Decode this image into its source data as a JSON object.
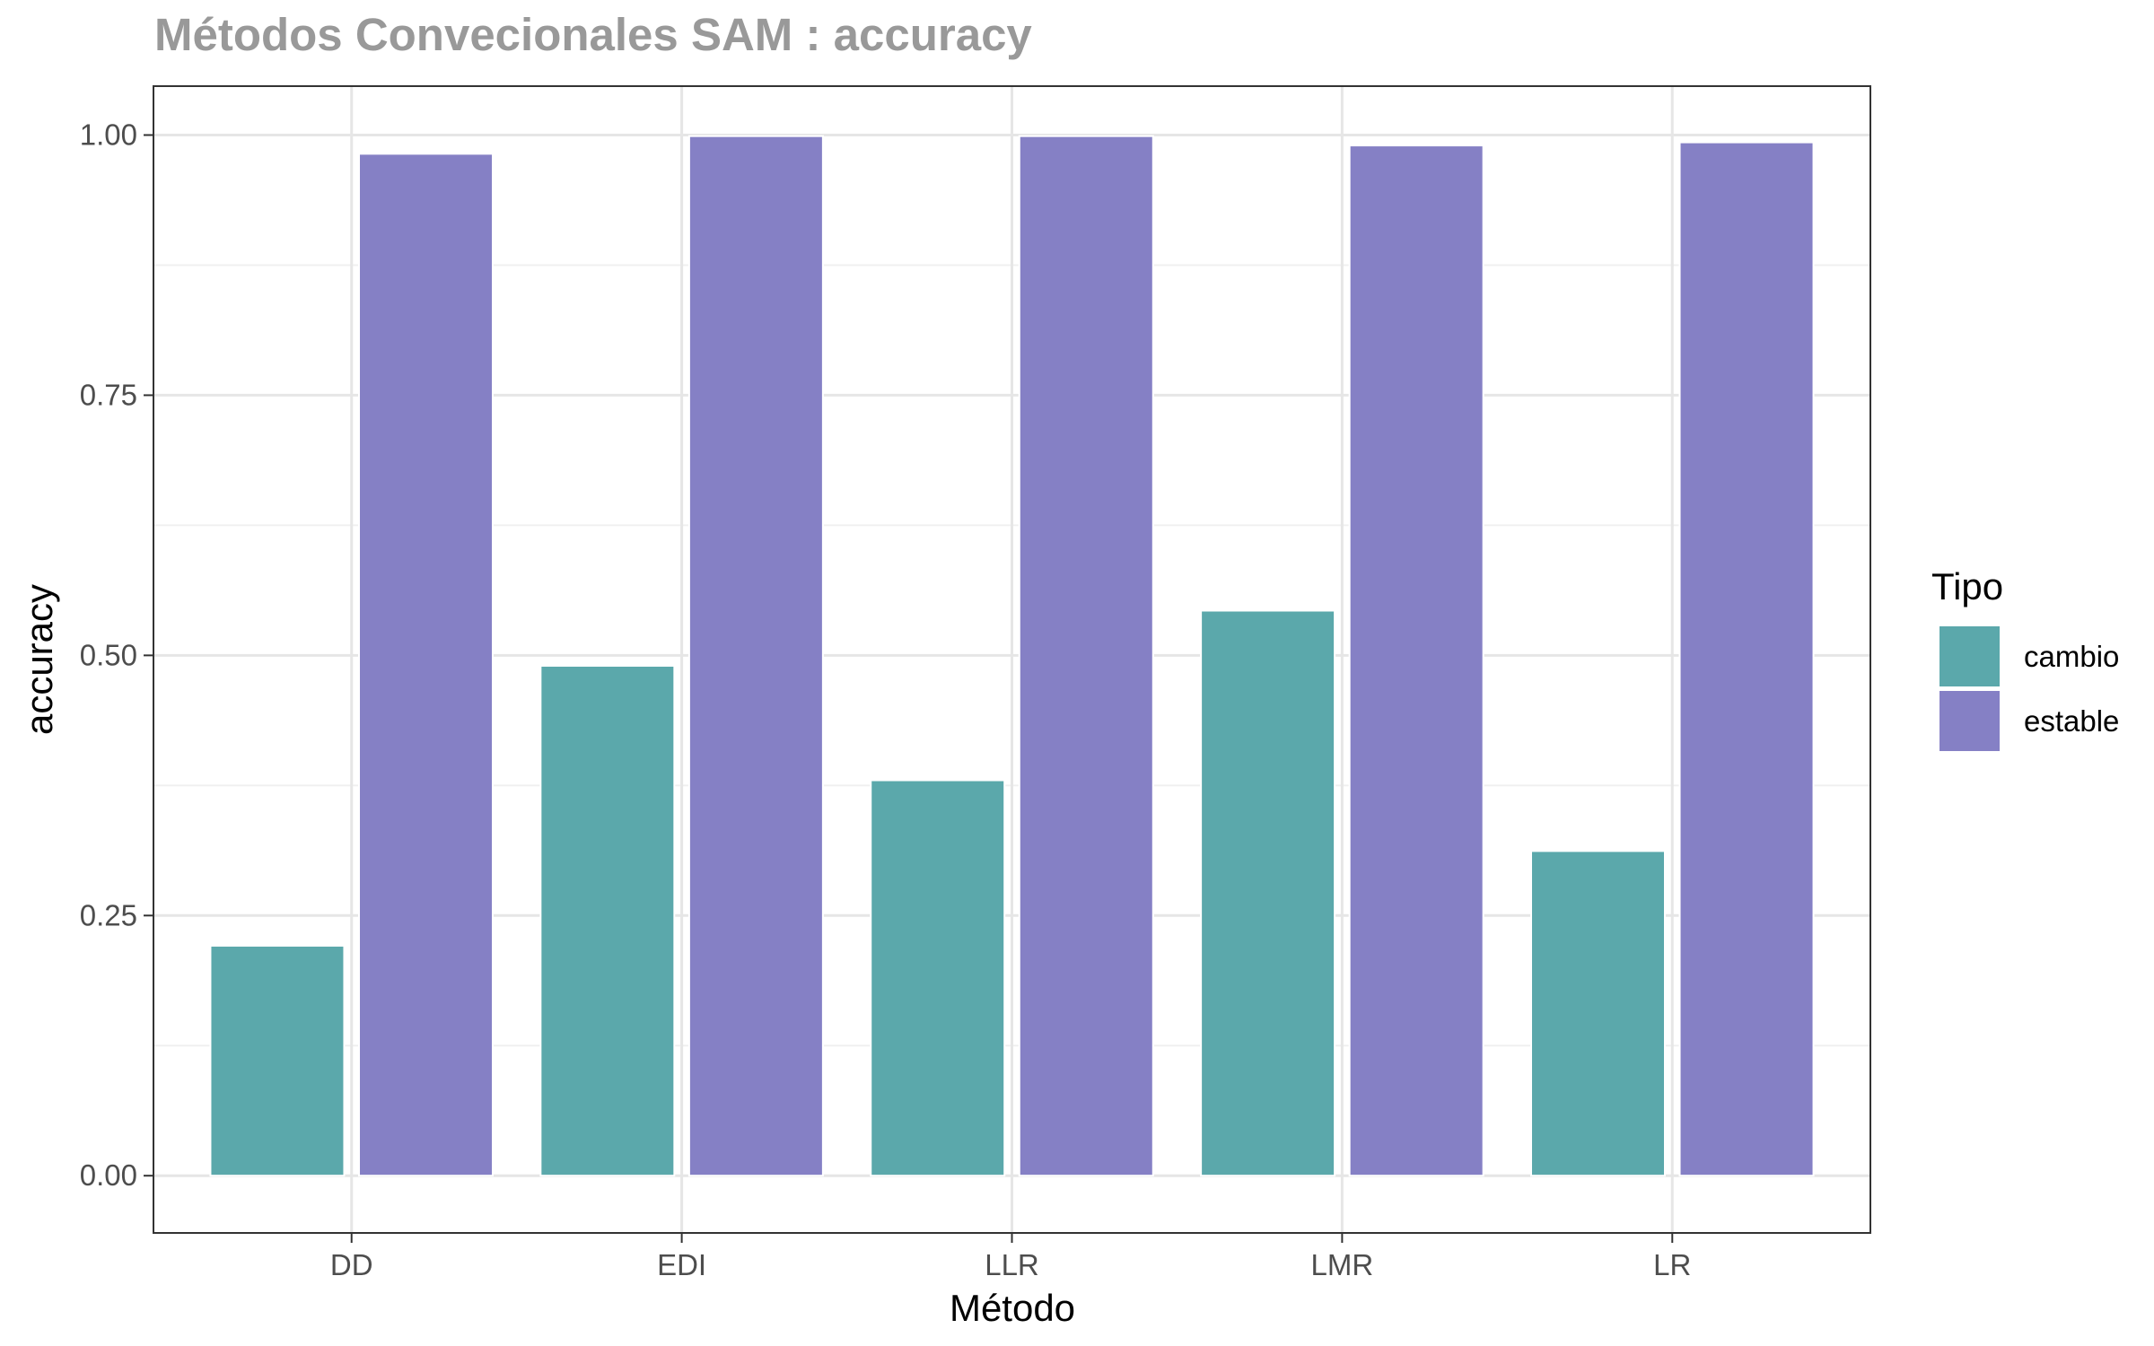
{
  "chart_data": {
    "type": "bar",
    "title": "Métodos Convecionales SAM : accuracy",
    "xlabel": "Método",
    "ylabel": "accuracy",
    "categories": [
      "DD",
      "EDI",
      "LLR",
      "LMR",
      "LR"
    ],
    "series": [
      {
        "name": "cambio",
        "color": "#5ba8ab",
        "values": [
          0.221,
          0.49,
          0.38,
          0.543,
          0.312
        ]
      },
      {
        "name": "estable",
        "color": "#8580c5",
        "values": [
          0.982,
          0.999,
          0.999,
          0.99,
          0.993
        ]
      }
    ],
    "ylim": [
      -0.055,
      1.047
    ],
    "yticks": [
      0.0,
      0.25,
      0.5,
      0.75,
      1.0
    ],
    "ytick_labels": [
      "0.00",
      "0.25",
      "0.50",
      "0.75",
      "1.00"
    ],
    "grid": true,
    "legend": {
      "title": "Tipo",
      "position": "right"
    }
  }
}
